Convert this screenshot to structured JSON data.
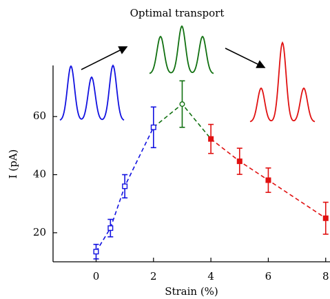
{
  "chart_data": {
    "type": "errorbar-line",
    "title": "Optimal transport",
    "xlabel": "Strain (%)",
    "ylabel": "I (pA)",
    "xlim": [
      -1.5,
      8.15
    ],
    "ylim": [
      10,
      77.6
    ],
    "xticks": [
      0,
      2,
      4,
      6,
      8
    ],
    "yticks": [
      20,
      40,
      60
    ],
    "series": [
      {
        "color": "#1010e0",
        "marker": "open-square",
        "x": [
          0,
          0.5,
          1,
          2
        ],
        "values": [
          13.5,
          21.6,
          36,
          56.3
        ],
        "errors": [
          2.5,
          3,
          4,
          7
        ]
      },
      {
        "color": "#107010",
        "marker": "open-circle",
        "x": [
          3
        ],
        "values": [
          64.3
        ],
        "errors": [
          8
        ]
      },
      {
        "color": "#e01010",
        "marker": "filled-square",
        "x": [
          4,
          5,
          6,
          8
        ],
        "values": [
          52.3,
          44.6,
          38.1,
          25
        ],
        "errors": [
          5,
          4.5,
          4.2,
          5.5
        ]
      }
    ]
  }
}
